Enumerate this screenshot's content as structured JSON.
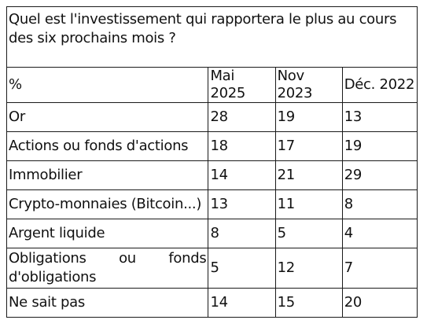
{
  "table": {
    "title": "Quel est l'investissement qui rapportera le plus au cours des six prochains mois ?",
    "headers": [
      "%",
      "Mai 2025",
      "Nov 2023",
      "Déc. 2022"
    ],
    "rows": [
      {
        "label": "Or",
        "values": [
          "28",
          "19",
          "13"
        ]
      },
      {
        "label": "Actions ou fonds d'actions",
        "values": [
          "18",
          "17",
          "19"
        ]
      },
      {
        "label": "Immobilier",
        "values": [
          "14",
          "21",
          "29"
        ]
      },
      {
        "label": "Crypto-monnaies (Bitcoin...)",
        "values": [
          "13",
          "11",
          "8"
        ]
      },
      {
        "label": "Argent liquide",
        "values": [
          "8",
          "5",
          "4"
        ]
      },
      {
        "label": "Obligations ou fonds d'obligations",
        "values": [
          "5",
          "12",
          "7"
        ]
      },
      {
        "label": "Ne sait pas",
        "values": [
          "14",
          "15",
          "20"
        ]
      }
    ]
  }
}
